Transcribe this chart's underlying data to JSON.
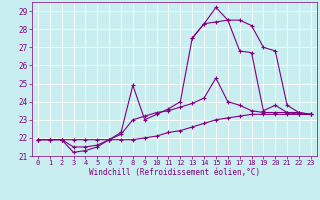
{
  "xlabel": "Windchill (Refroidissement éolien,°C)",
  "bg_color": "#c8eef0",
  "line_color": "#800080",
  "grid_color": "#ffffff",
  "xlim": [
    -0.5,
    23.5
  ],
  "ylim": [
    21,
    29.5
  ],
  "yticks": [
    21,
    22,
    23,
    24,
    25,
    26,
    27,
    28,
    29
  ],
  "xticks": [
    0,
    1,
    2,
    3,
    4,
    5,
    6,
    7,
    8,
    9,
    10,
    11,
    12,
    13,
    14,
    15,
    16,
    17,
    18,
    19,
    20,
    21,
    22,
    23
  ],
  "curves": [
    {
      "x": [
        0,
        1,
        2,
        3,
        4,
        5,
        6,
        7,
        8,
        9,
        10,
        11,
        12,
        13,
        14,
        15,
        16,
        17,
        18,
        19,
        20,
        21,
        22,
        23
      ],
      "y": [
        21.9,
        21.9,
        21.9,
        21.9,
        21.9,
        21.9,
        21.9,
        21.9,
        21.9,
        22.0,
        22.1,
        22.3,
        22.4,
        22.6,
        22.8,
        23.0,
        23.1,
        23.2,
        23.3,
        23.3,
        23.3,
        23.3,
        23.3,
        23.3
      ]
    },
    {
      "x": [
        0,
        1,
        2,
        3,
        4,
        5,
        6,
        7,
        8,
        9,
        10,
        11,
        12,
        13,
        14,
        15,
        16,
        17,
        18,
        19,
        20,
        21,
        22,
        23
      ],
      "y": [
        21.9,
        21.9,
        21.9,
        21.5,
        21.5,
        21.6,
        21.9,
        22.2,
        23.0,
        23.2,
        23.4,
        23.5,
        23.7,
        23.9,
        24.2,
        25.3,
        24.0,
        23.8,
        23.5,
        23.4,
        23.4,
        23.4,
        23.4,
        23.3
      ]
    },
    {
      "x": [
        0,
        1,
        2,
        3,
        4,
        5,
        6,
        7,
        8,
        9,
        10,
        11,
        12,
        13,
        14,
        15,
        16,
        17,
        18,
        19,
        20,
        21,
        22,
        23
      ],
      "y": [
        21.9,
        21.9,
        21.9,
        21.2,
        21.3,
        21.5,
        21.9,
        22.3,
        24.9,
        23.0,
        23.3,
        23.6,
        24.0,
        27.5,
        28.3,
        29.2,
        28.5,
        26.8,
        26.7,
        23.5,
        23.8,
        23.4,
        23.3,
        23.3
      ]
    },
    {
      "x": [
        13,
        14,
        15,
        16,
        17,
        18,
        19,
        20,
        21,
        22,
        23
      ],
      "y": [
        27.5,
        28.3,
        28.4,
        28.5,
        28.5,
        28.2,
        27.0,
        26.8,
        23.8,
        23.4,
        23.3
      ]
    }
  ]
}
